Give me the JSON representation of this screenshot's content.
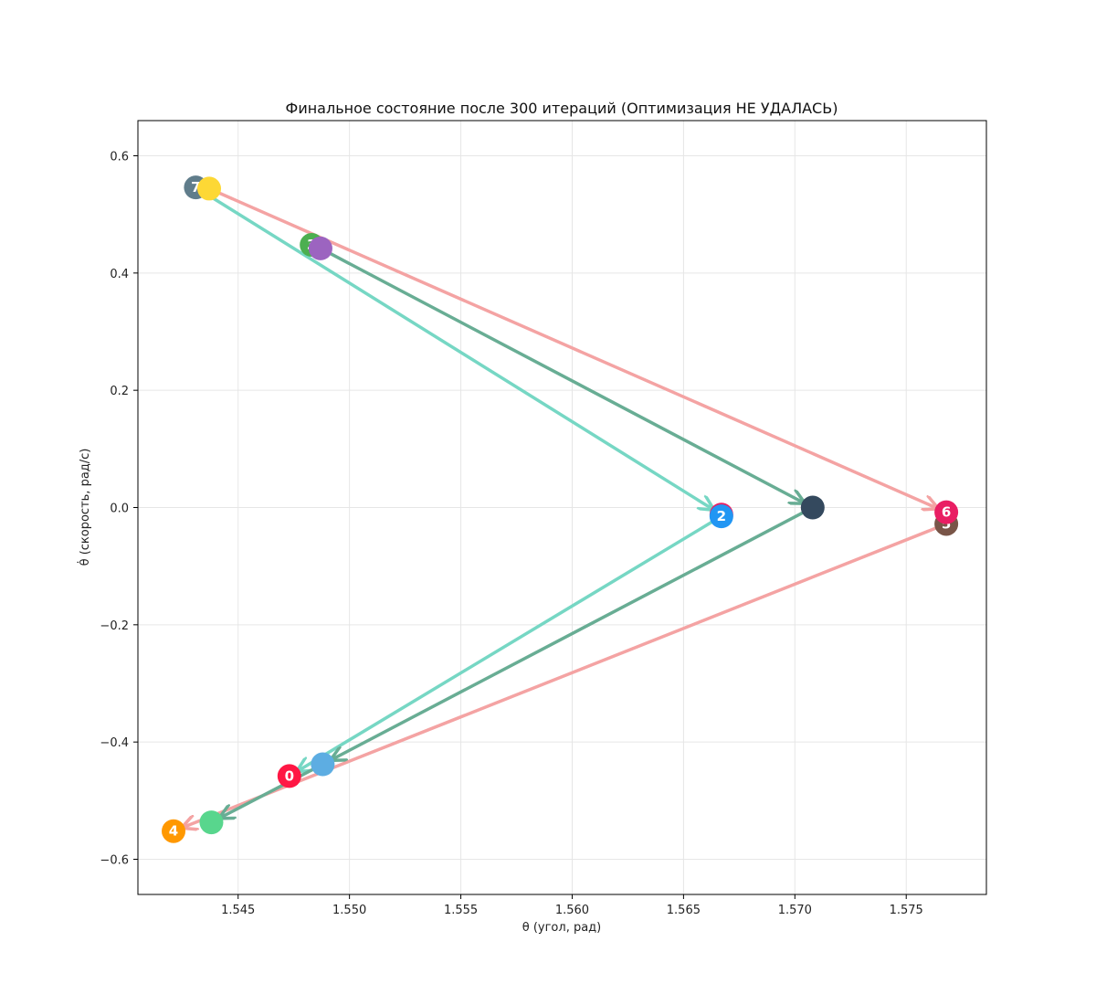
{
  "chart_data": {
    "type": "scatter",
    "title": "Финальное состояние после 300 итераций (Оптимизация НЕ УДАЛАСЬ)",
    "xlabel": "θ (угол, рад)",
    "ylabel": "θ̇ (скорость, рад/с)",
    "xlim": [
      1.5405,
      1.5786
    ],
    "ylim": [
      -0.66,
      0.66
    ],
    "xticks": [
      1.545,
      1.55,
      1.555,
      1.56,
      1.565,
      1.57,
      1.575
    ],
    "xtick_labels": [
      "1.545",
      "1.550",
      "1.555",
      "1.560",
      "1.565",
      "1.570",
      "1.575"
    ],
    "yticks": [
      0.6,
      0.4,
      0.2,
      0.0,
      -0.2,
      -0.4,
      -0.6
    ],
    "ytick_labels": [
      "0.6",
      "0.4",
      "0.2",
      "0.0",
      "−0.2",
      "−0.4",
      "−0.6"
    ],
    "grid": true,
    "points": [
      {
        "x": 1.5473,
        "y": -0.458,
        "color": "#ff1744",
        "label": "0"
      },
      {
        "x": 1.5768,
        "y": -0.028,
        "color": "#795548",
        "label": "5"
      },
      {
        "x": 1.5667,
        "y": -0.012,
        "color": "#e91e63",
        "label": ""
      },
      {
        "x": 1.5667,
        "y": -0.015,
        "color": "#2196f3",
        "label": "2"
      },
      {
        "x": 1.5483,
        "y": 0.448,
        "color": "#4caf50",
        "label": "3"
      },
      {
        "x": 1.5421,
        "y": -0.552,
        "color": "#ff9800",
        "label": "4"
      },
      {
        "x": 1.5768,
        "y": -0.008,
        "color": "#e91e63",
        "label": "6"
      },
      {
        "x": 1.5431,
        "y": 0.546,
        "color": "#607d8b",
        "label": "7"
      },
      {
        "x": 1.5437,
        "y": 0.544,
        "color": "#fdd835",
        "label": ""
      },
      {
        "x": 1.5487,
        "y": 0.442,
        "color": "#9c64c0",
        "label": ""
      },
      {
        "x": 1.5708,
        "y": 0.0,
        "color": "#34495e",
        "label": ""
      },
      {
        "x": 1.5488,
        "y": -0.438,
        "color": "#5dade2",
        "label": ""
      },
      {
        "x": 1.5438,
        "y": -0.537,
        "color": "#58d68d",
        "label": ""
      }
    ],
    "trajectories": [
      {
        "color": "#f4a3a3",
        "points": [
          [
            1.5437,
            0.544
          ],
          [
            1.5768,
            -0.008
          ],
          [
            1.5768,
            -0.028
          ],
          [
            1.5421,
            -0.552
          ]
        ]
      },
      {
        "color": "#76d7c4",
        "points": [
          [
            1.5431,
            0.546
          ],
          [
            1.5667,
            -0.012
          ],
          [
            1.5667,
            -0.015
          ],
          [
            1.5473,
            -0.458
          ]
        ]
      },
      {
        "color": "#68ad94",
        "points": [
          [
            1.5487,
            0.442
          ],
          [
            1.5708,
            0.0
          ],
          [
            1.5488,
            -0.438
          ],
          [
            1.5438,
            -0.537
          ]
        ]
      }
    ]
  }
}
